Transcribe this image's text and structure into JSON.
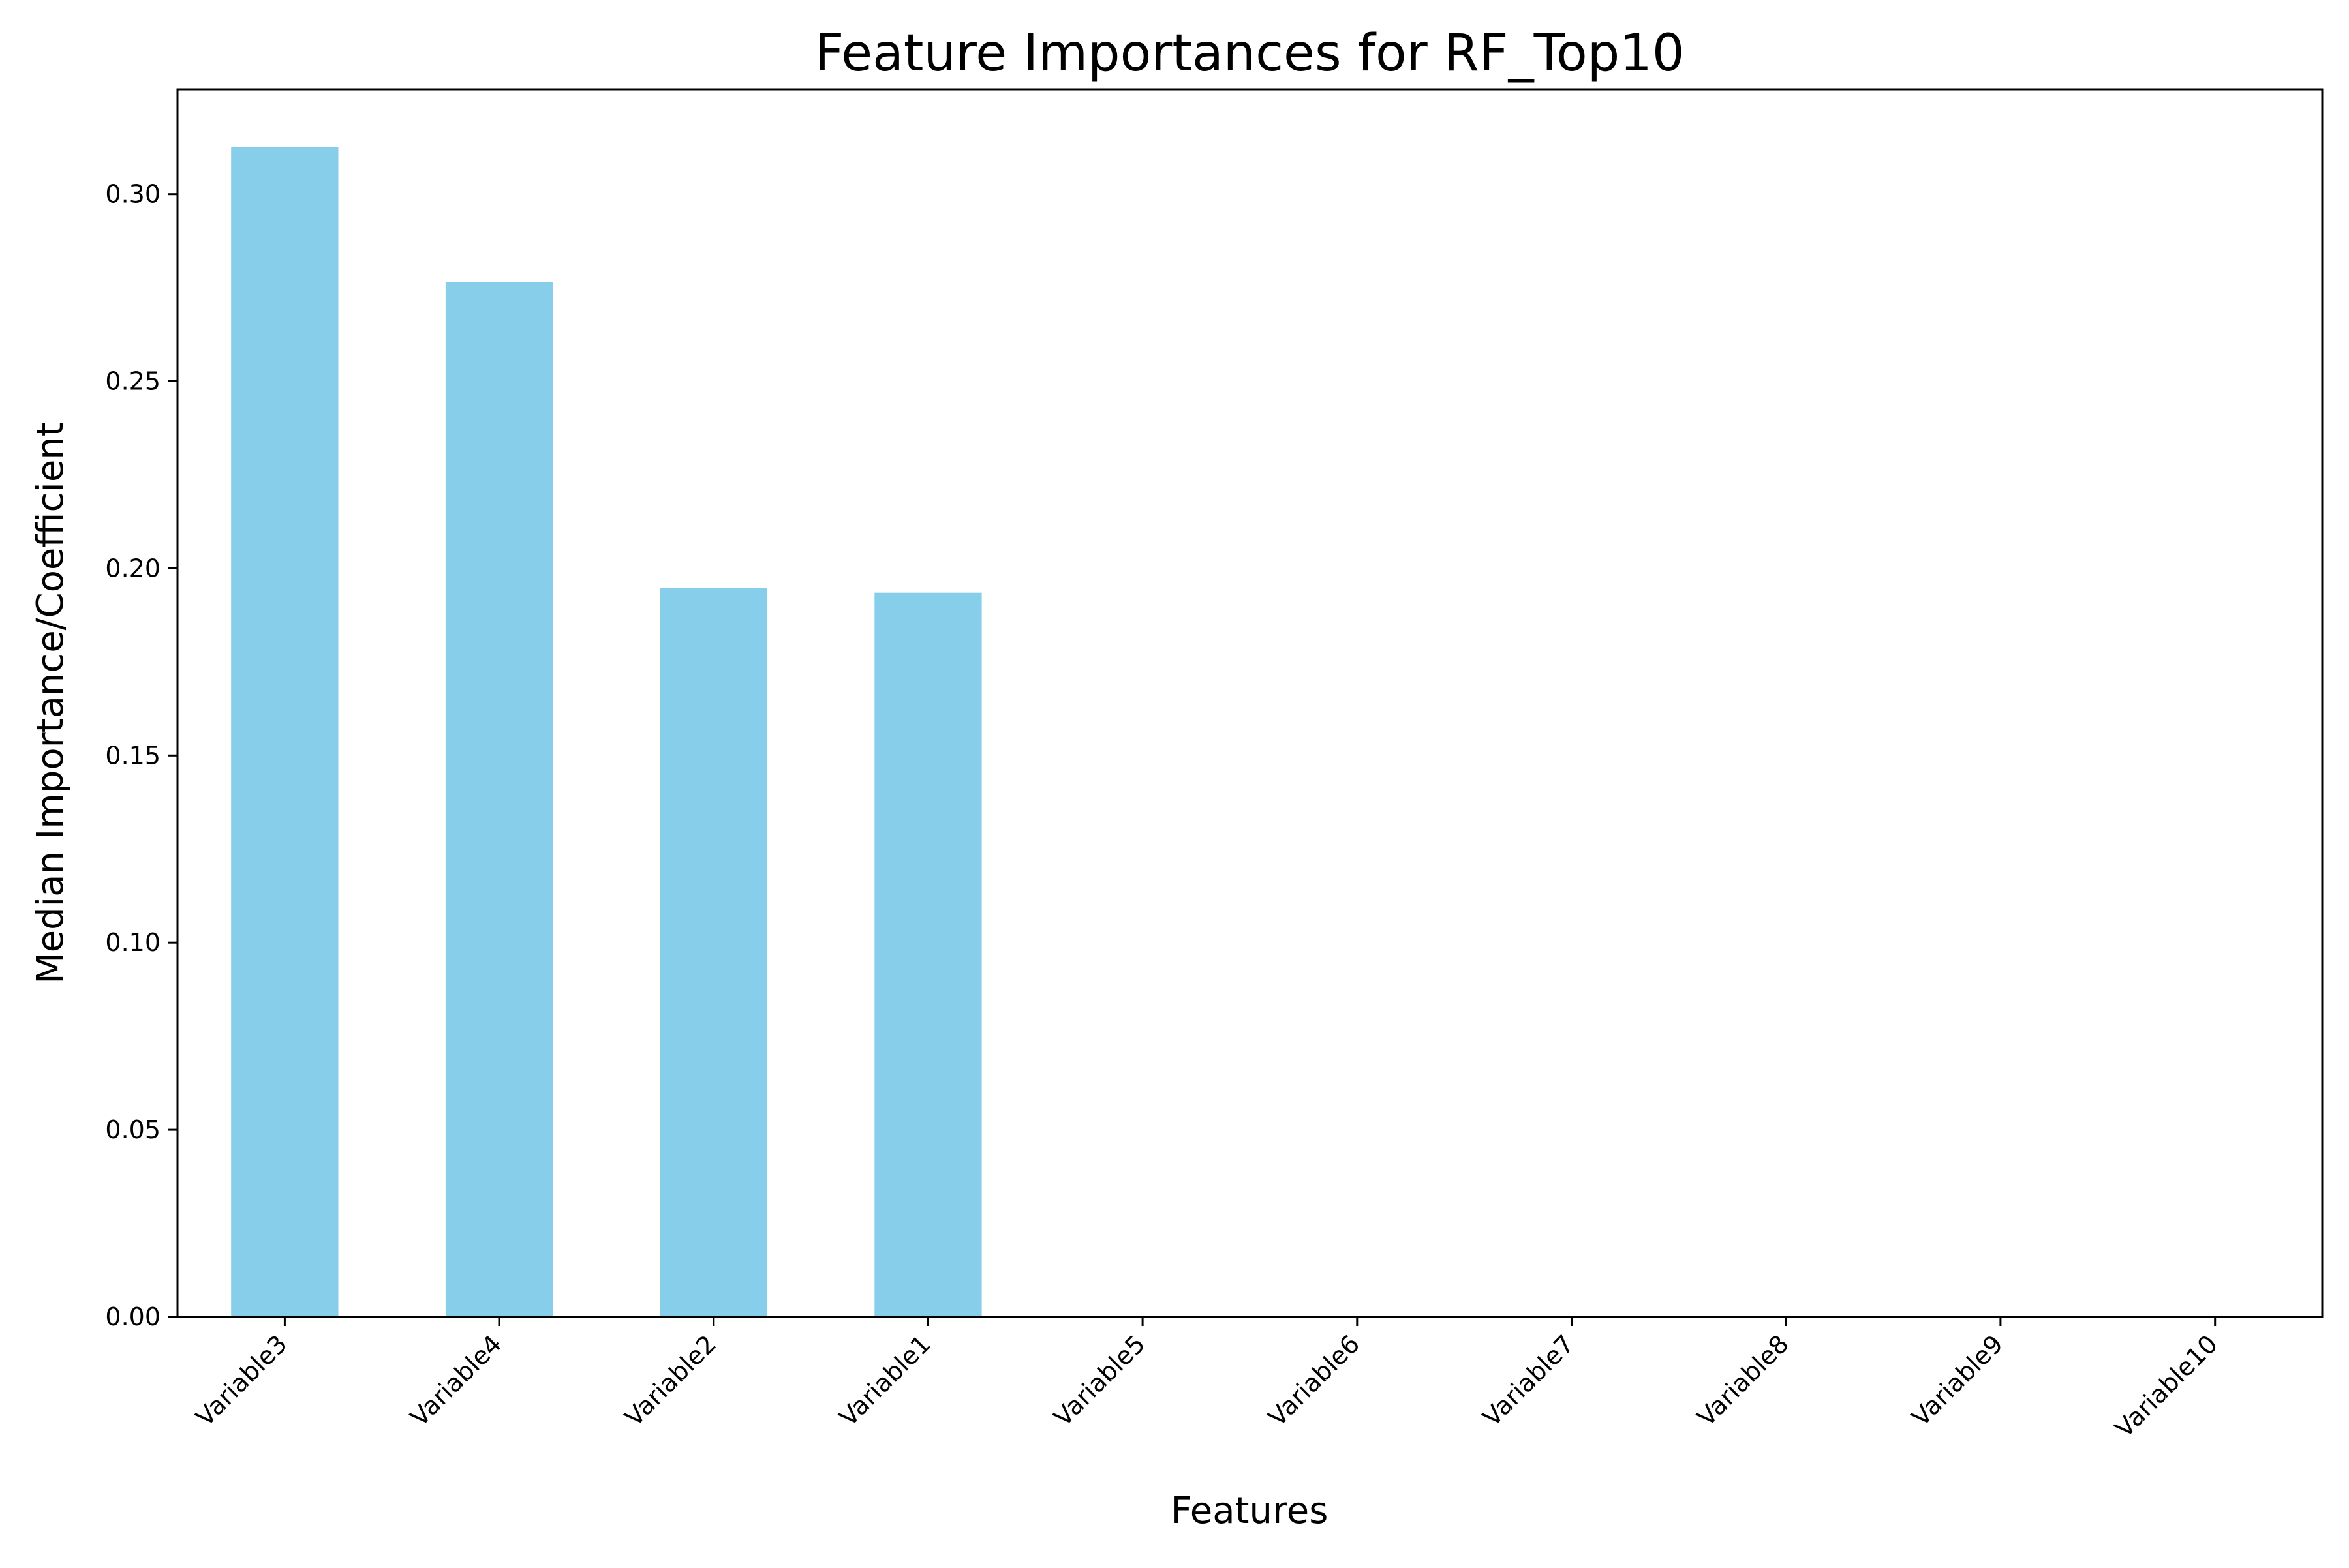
{
  "chart_data": {
    "type": "bar",
    "title": "Feature Importances for RF_Top10",
    "xlabel": "Features",
    "ylabel": "Median Importance/Coefficient",
    "categories": [
      "Variable3",
      "Variable4",
      "Variable2",
      "Variable1",
      "Variable5",
      "Variable6",
      "Variable7",
      "Variable8",
      "Variable9",
      "Variable10"
    ],
    "values": [
      0.3125,
      0.2765,
      0.1948,
      0.1935,
      0,
      0,
      0,
      0,
      0,
      0
    ],
    "ylim": [
      0,
      0.328
    ],
    "yticks": [
      0.0,
      0.05,
      0.1,
      0.15,
      0.2,
      0.25,
      0.3
    ],
    "ytick_labels": [
      "0.00",
      "0.05",
      "0.10",
      "0.15",
      "0.20",
      "0.25",
      "0.30"
    ],
    "xtick_rotation_deg": 45,
    "grid": false,
    "legend": "none",
    "colors": {
      "bar": "#87ceeb",
      "axis": "#000000",
      "background": "#ffffff"
    }
  }
}
